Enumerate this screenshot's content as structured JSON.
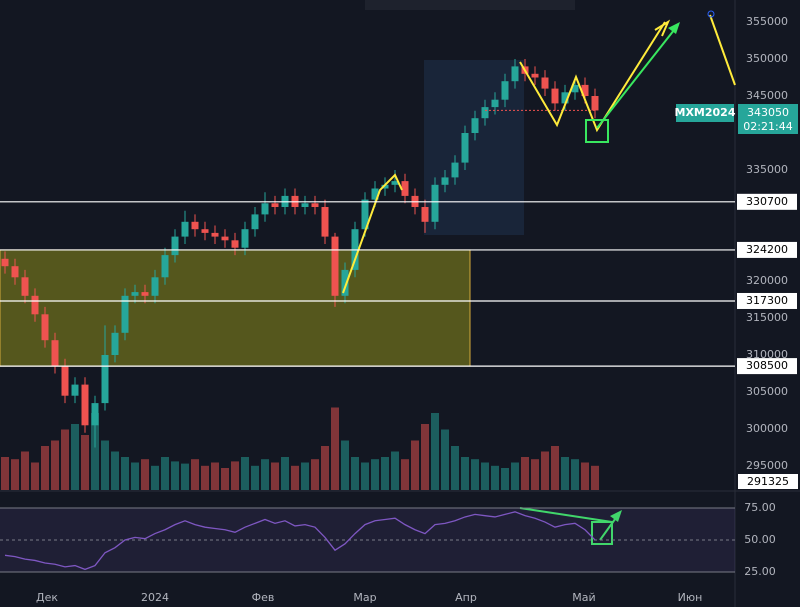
{
  "chart_data": {
    "type": "candlestick",
    "symbol": "MXM2024",
    "countdown": "02:21:44",
    "volume_readout": 291325,
    "open": [
      323000,
      322000,
      320500,
      318000,
      315500,
      312000,
      308500,
      304500,
      306000,
      300500,
      303500,
      310000,
      313000,
      318000,
      318500,
      318000,
      320500,
      323500,
      326000,
      328000,
      327000,
      326500,
      326000,
      325500,
      324500,
      327000,
      329000,
      330500,
      330000,
      331500,
      330000,
      330500,
      330000,
      326000,
      318000,
      321500,
      327000,
      331000,
      332500,
      333000,
      333500,
      331500,
      330000,
      328000,
      333000,
      334000,
      336000,
      340000,
      342000,
      343500,
      344500,
      347000,
      349000,
      348000,
      347500,
      346000,
      344000,
      345500,
      346500,
      345000
    ],
    "high": [
      324000,
      323000,
      321500,
      319000,
      316500,
      313000,
      309500,
      307000,
      307000,
      304500,
      314000,
      314000,
      319000,
      319500,
      319500,
      321500,
      324500,
      327000,
      329500,
      329000,
      328000,
      327500,
      327000,
      326500,
      328000,
      330000,
      332000,
      331500,
      332500,
      332500,
      331500,
      331500,
      331000,
      326500,
      322500,
      328000,
      332000,
      333500,
      334000,
      335000,
      334500,
      332500,
      331000,
      334000,
      335000,
      337000,
      341000,
      343000,
      344500,
      345500,
      348000,
      350000,
      350000,
      349000,
      348500,
      347000,
      346500,
      347500,
      347500,
      346000
    ],
    "low": [
      321000,
      319500,
      317000,
      314500,
      311000,
      307500,
      303500,
      303500,
      299500,
      297500,
      302500,
      309000,
      312000,
      317000,
      317000,
      317000,
      319500,
      322500,
      325000,
      326000,
      325500,
      325000,
      324500,
      323500,
      323500,
      326000,
      328000,
      329000,
      329000,
      329000,
      329000,
      329000,
      325000,
      316500,
      317000,
      320500,
      326000,
      330000,
      331500,
      332000,
      330500,
      329000,
      326500,
      327000,
      332000,
      333000,
      335000,
      339000,
      341000,
      342500,
      343500,
      346000,
      347000,
      346500,
      345000,
      343000,
      343000,
      344500,
      344000,
      342000
    ],
    "close": [
      322000,
      320500,
      318000,
      315500,
      312000,
      308500,
      304500,
      306000,
      300500,
      303500,
      310000,
      313000,
      318000,
      318500,
      318000,
      320500,
      323500,
      326000,
      328000,
      327000,
      326500,
      326000,
      325500,
      324500,
      327000,
      329000,
      330500,
      330000,
      331500,
      330000,
      330500,
      330000,
      326000,
      318000,
      321500,
      327000,
      331000,
      332500,
      333000,
      333500,
      331500,
      330000,
      328000,
      333000,
      334000,
      336000,
      340000,
      342000,
      343500,
      344500,
      347000,
      349000,
      348000,
      347500,
      346000,
      344000,
      345500,
      346500,
      345000,
      343050
    ],
    "up_color": "#26a69a",
    "down_color": "#ef5350",
    "xlim": [
      -0.5,
      73
    ],
    "xticks": [
      {
        "value": 4.2,
        "label": "Дек"
      },
      {
        "value": 15,
        "label": "2024"
      },
      {
        "value": 25.8,
        "label": "Фев"
      },
      {
        "value": 36,
        "label": "Мар"
      },
      {
        "value": 46.1,
        "label": "Апр"
      },
      {
        "value": 57.9,
        "label": "Май"
      },
      {
        "value": 68.5,
        "label": "Июн"
      }
    ],
    "ylim": [
      291757,
      357973
    ],
    "yticks": [
      355000,
      350000,
      345000,
      335000,
      320000,
      315000,
      310000,
      305000,
      300000,
      295000
    ],
    "levels": [
      330700,
      324200,
      317300,
      308500
    ],
    "volume": {
      "values": [
        30,
        28,
        35,
        25,
        40,
        45,
        55,
        60,
        50,
        70,
        45,
        35,
        30,
        25,
        28,
        22,
        30,
        26,
        24,
        28,
        22,
        25,
        20,
        26,
        30,
        22,
        28,
        25,
        30,
        22,
        25,
        28,
        40,
        75,
        45,
        30,
        25,
        28,
        30,
        35,
        28,
        45,
        60,
        70,
        55,
        40,
        30,
        28,
        25,
        22,
        20,
        25,
        30,
        28,
        35,
        40,
        30,
        28,
        25,
        22
      ],
      "lim": [
        0,
        100
      ]
    },
    "rsi": {
      "values": [
        38,
        37,
        35,
        34,
        32,
        31,
        29,
        30,
        27,
        30,
        40,
        44,
        50,
        52,
        51,
        55,
        58,
        62,
        65,
        62,
        60,
        59,
        58,
        56,
        60,
        63,
        66,
        63,
        65,
        61,
        62,
        60,
        52,
        42,
        47,
        55,
        62,
        65,
        66,
        67,
        62,
        58,
        55,
        62,
        63,
        65,
        68,
        70,
        69,
        68,
        70,
        72,
        69,
        67,
        64,
        60,
        62,
        63,
        58,
        50
      ],
      "color": "#7e57c2",
      "ylim": [
        10.9,
        87.5
      ],
      "yticks": [
        {
          "value": 75,
          "label": "75.00"
        },
        {
          "value": 50,
          "label": "50.00"
        },
        {
          "value": 25,
          "label": "25.00"
        }
      ]
    }
  }
}
